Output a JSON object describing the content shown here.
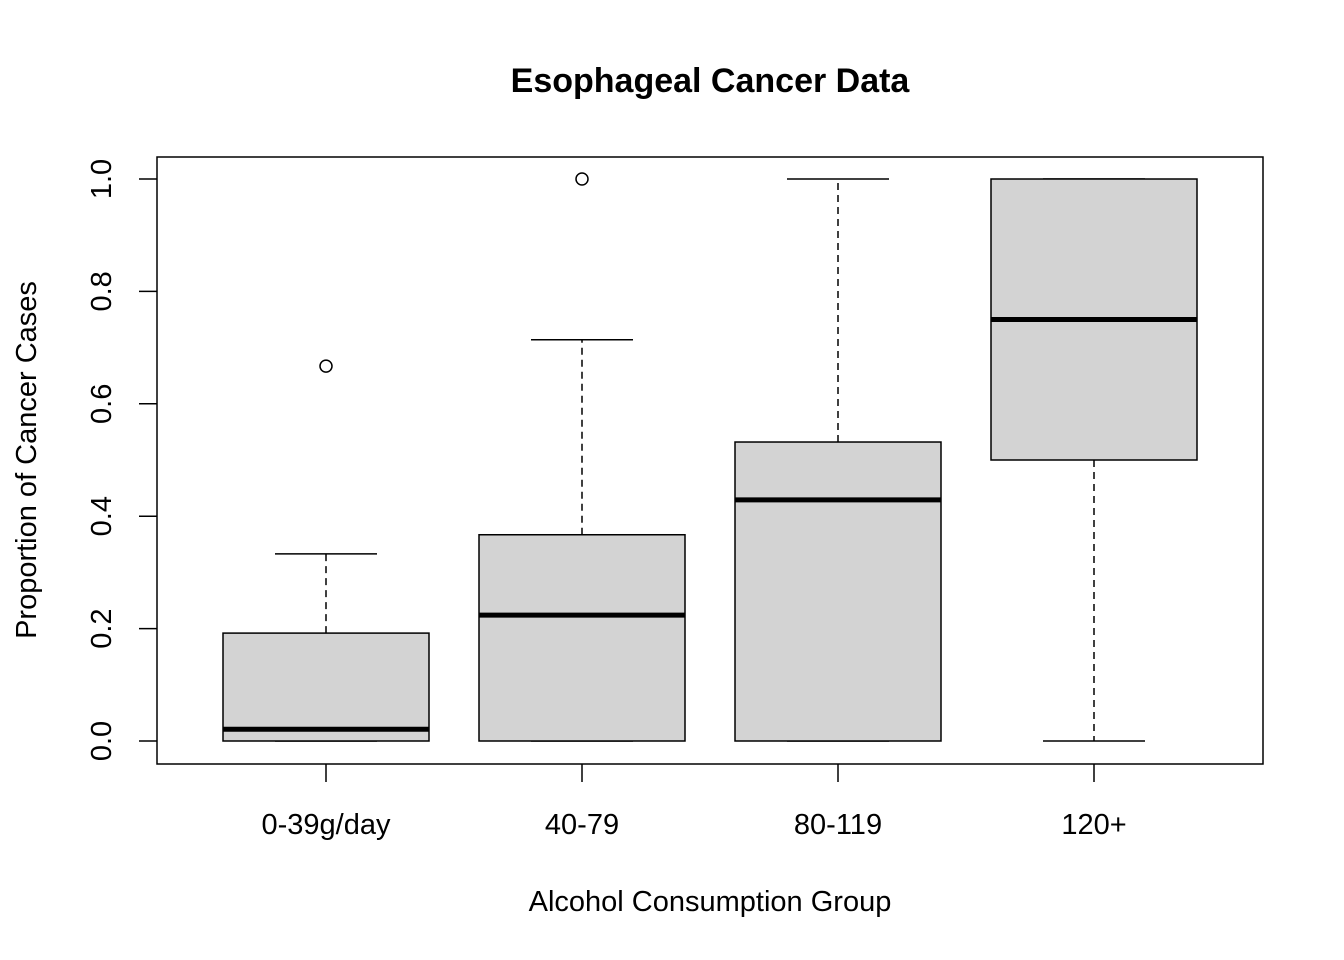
{
  "chart_data": {
    "type": "boxplot",
    "title": "Esophageal Cancer Data",
    "xlabel": "Alcohol Consumption Group",
    "ylabel": "Proportion of Cancer Cases",
    "categories": [
      "0-39g/day",
      "40-79",
      "80-119",
      "120+"
    ],
    "ylim": [
      0,
      1.0
    ],
    "yticks": [
      "0.0",
      "0.2",
      "0.4",
      "0.6",
      "0.8",
      "1.0"
    ],
    "grid": false,
    "box_fill": "#d3d3d3",
    "boxes": [
      {
        "whisker_low": 0,
        "q1": 0,
        "median": 0.021,
        "q3": 0.192,
        "whisker_high": 0.333,
        "outliers": [
          0.667
        ]
      },
      {
        "whisker_low": 0,
        "q1": 0,
        "median": 0.224,
        "q3": 0.367,
        "whisker_high": 0.714,
        "outliers": [
          1.0
        ]
      },
      {
        "whisker_low": 0,
        "q1": 0,
        "median": 0.429,
        "q3": 0.532,
        "whisker_high": 1.0,
        "outliers": []
      },
      {
        "whisker_low": 0,
        "q1": 0.5,
        "median": 0.75,
        "q3": 1.0,
        "whisker_high": 1.0,
        "outliers": []
      }
    ]
  }
}
